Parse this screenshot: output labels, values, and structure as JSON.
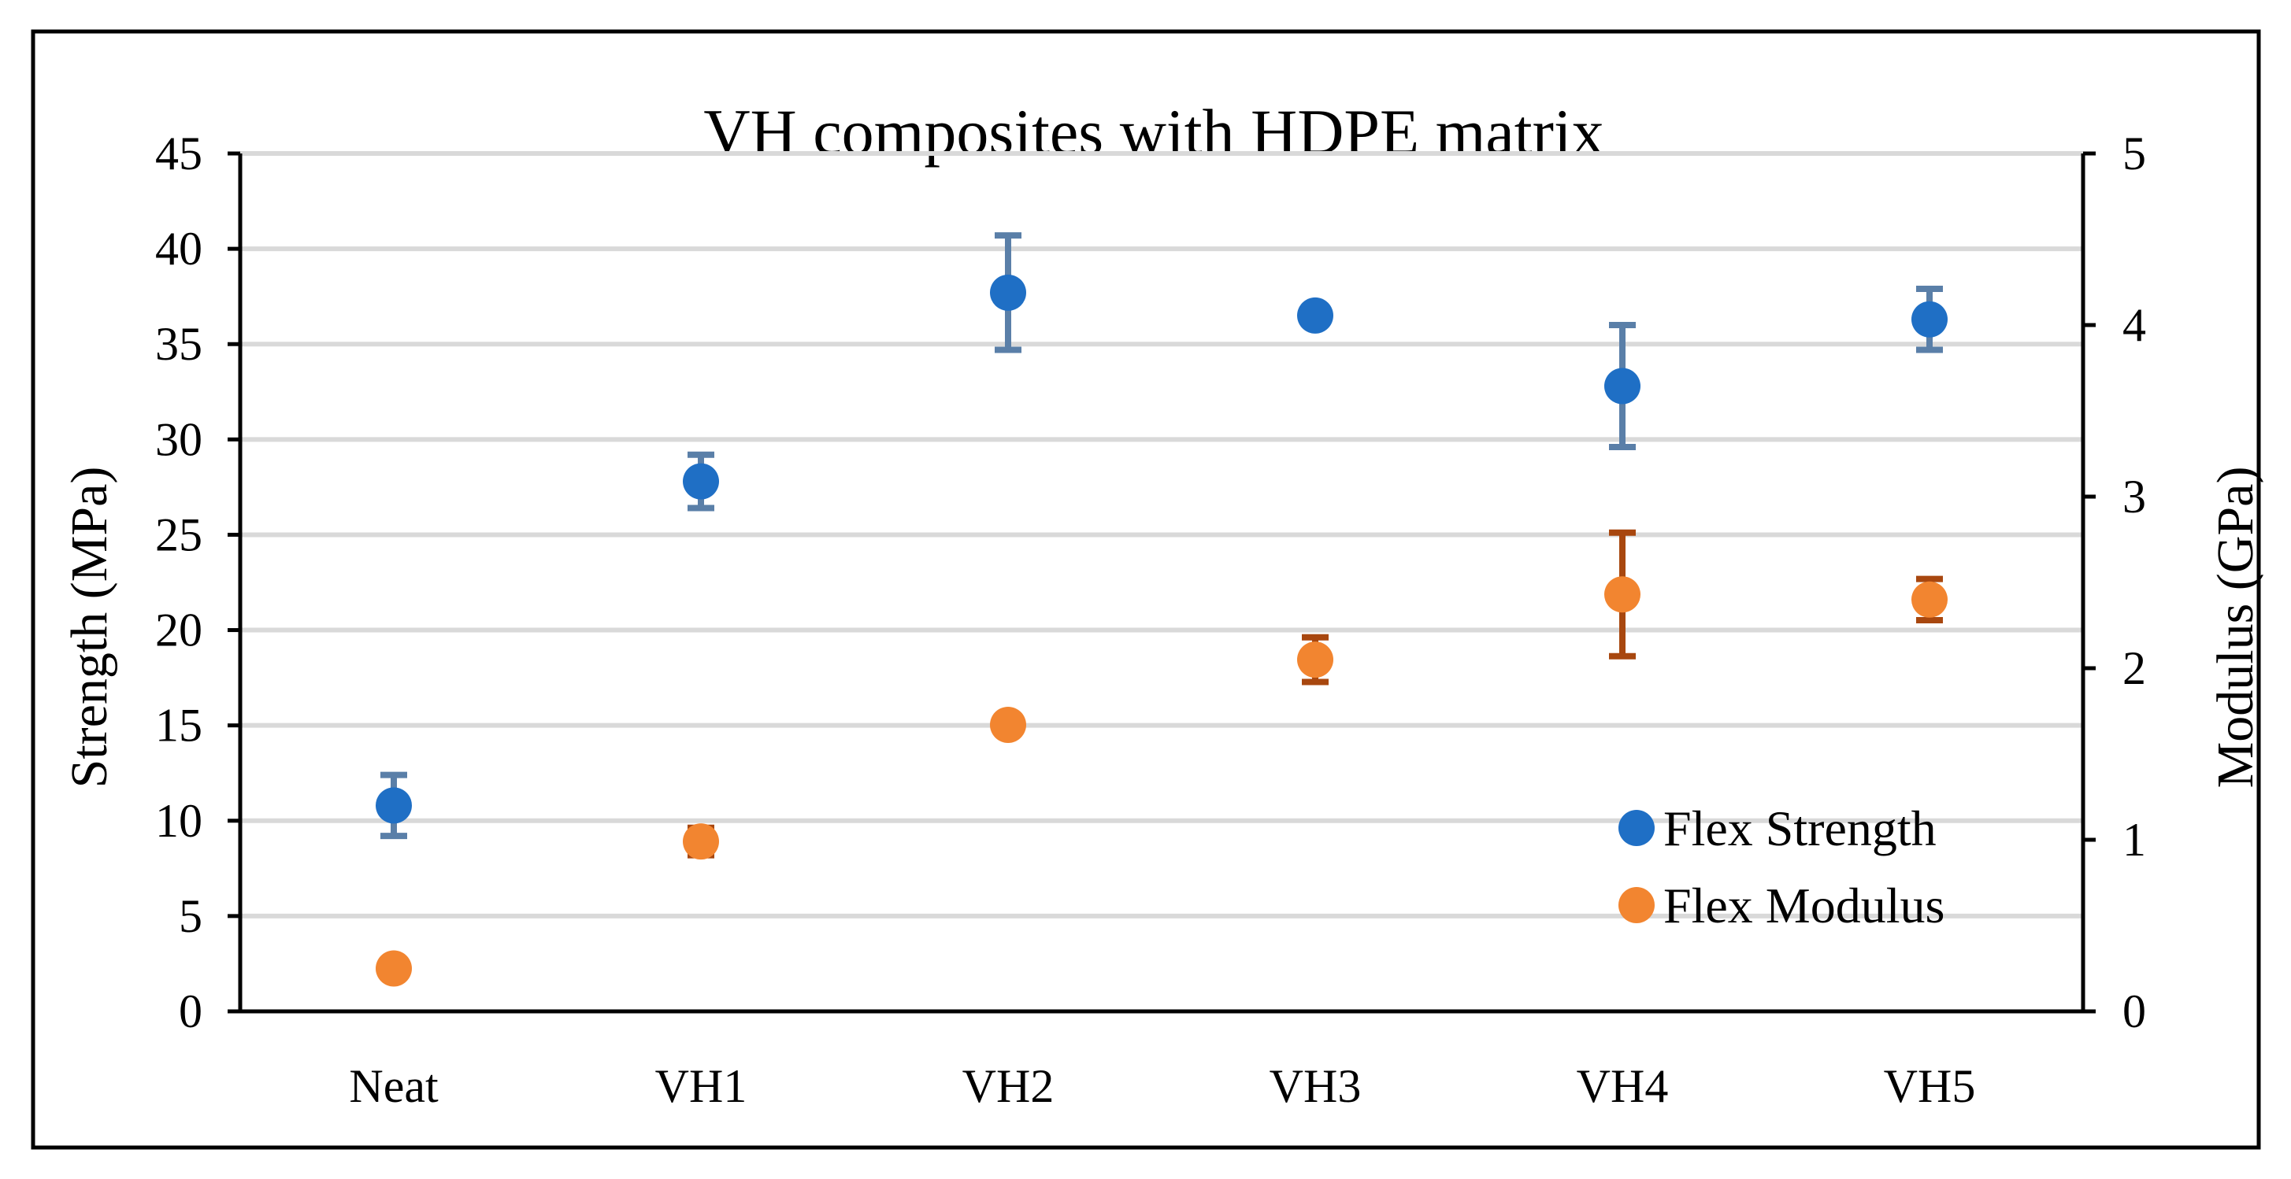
{
  "chart_data": {
    "type": "scatter",
    "title": "VH composites with HDPE matrix",
    "categories": [
      "Neat",
      "VH1",
      "VH2",
      "VH3",
      "VH4",
      "VH5"
    ],
    "y_left": {
      "label": "Strength (MPa)",
      "min": 0,
      "max": 45,
      "step": 5
    },
    "y_right": {
      "label": "Modulus (GPa)",
      "min": 0,
      "max": 5,
      "step": 1
    },
    "grid": true,
    "legend_position": "bottom-right",
    "series": [
      {
        "name": "Flex Strength",
        "axis": "left",
        "color": "#1f6fc5",
        "error_color": "#5a7fa8",
        "values": [
          10.8,
          27.8,
          37.7,
          36.5,
          32.8,
          36.3
        ],
        "errors": [
          1.6,
          1.4,
          3.0,
          0.0,
          3.2,
          1.6
        ]
      },
      {
        "name": "Flex Modulus",
        "axis": "right",
        "color": "#f28530",
        "error_color": "#a8470f",
        "values": [
          0.25,
          0.99,
          1.67,
          2.05,
          2.43,
          2.4
        ],
        "errors": [
          0.0,
          0.08,
          0.0,
          0.13,
          0.36,
          0.12
        ]
      }
    ]
  }
}
